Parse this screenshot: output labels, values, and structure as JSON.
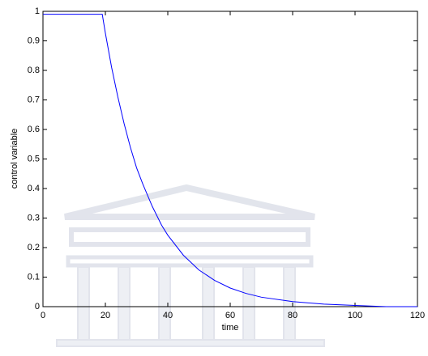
{
  "chart_data": {
    "type": "line",
    "x_label": "time",
    "y_label": "control variable",
    "x": [
      0,
      19,
      20,
      22,
      24,
      26,
      28,
      30,
      32,
      35,
      38,
      40,
      45,
      50,
      55,
      60,
      65,
      70,
      80,
      90,
      100,
      110,
      120
    ],
    "values": [
      0.99,
      0.99,
      0.926,
      0.81,
      0.71,
      0.62,
      0.54,
      0.47,
      0.415,
      0.34,
      0.276,
      0.242,
      0.174,
      0.124,
      0.089,
      0.063,
      0.045,
      0.032,
      0.017,
      0.0085,
      0.004,
      0,
      0
    ],
    "color": "#0000ff",
    "xlim": [
      0,
      120
    ],
    "xticks": [
      0,
      20,
      40,
      60,
      80,
      100,
      120
    ],
    "ylim": [
      0,
      1
    ],
    "yticks": [
      0,
      0.1,
      0.2,
      0.3,
      0.4,
      0.5,
      0.6,
      0.7,
      0.8,
      0.9,
      1
    ],
    "grid": false
  }
}
